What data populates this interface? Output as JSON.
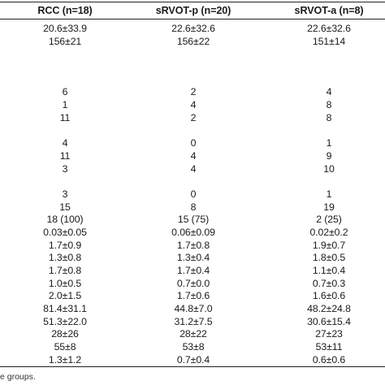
{
  "table": {
    "headers": [
      "RCC (n=18)",
      "sRVOT-p (n=20)",
      "sRVOT-a (n=8)"
    ],
    "rows": [
      [
        "20.6±33.9",
        "22.6±32.6",
        "22.6±32.6"
      ],
      [
        "156±21",
        "156±22",
        "151±14"
      ],
      [
        "",
        "",
        ""
      ],
      [
        "",
        "",
        ""
      ],
      [
        "",
        "",
        ""
      ],
      [
        "6",
        "2",
        "4"
      ],
      [
        "1",
        "4",
        "8"
      ],
      [
        "11",
        "2",
        "8"
      ],
      [
        "",
        "",
        ""
      ],
      [
        "4",
        "0",
        "1"
      ],
      [
        "11",
        "4",
        "9"
      ],
      [
        "3",
        "4",
        "10"
      ],
      [
        "",
        "",
        ""
      ],
      [
        "3",
        "0",
        "1"
      ],
      [
        "15",
        "8",
        "19"
      ],
      [
        "18 (100)",
        "15 (75)",
        "2 (25)"
      ],
      [
        "0.03±0.05",
        "0.06±0.09",
        "0.02±0.2"
      ],
      [
        "1.7±0.9",
        "1.7±0.8",
        "1.9±0.7"
      ],
      [
        "1.3±0.8",
        "1.3±0.4",
        "1.8±0.5"
      ],
      [
        "1.7±0.8",
        "1.7±0.4",
        "1.1±0.4"
      ],
      [
        "1.0±0.5",
        "0.7±0.0",
        "0.7±0.3"
      ],
      [
        "2.0±1.5",
        "1.7±0.6",
        "1.6±0.6"
      ],
      [
        "81.4±31.1",
        "44.8±7.0",
        "48.2±24.8"
      ],
      [
        "51.3±22.0",
        "31.2±7.5",
        "30.6±15.4"
      ],
      [
        "28±26",
        "28±22",
        "27±23"
      ],
      [
        "55±8",
        "53±8",
        "53±11"
      ],
      [
        "1.3±1.2",
        "0.7±0.4",
        "0.6±0.6"
      ]
    ]
  },
  "footnote": "e groups."
}
